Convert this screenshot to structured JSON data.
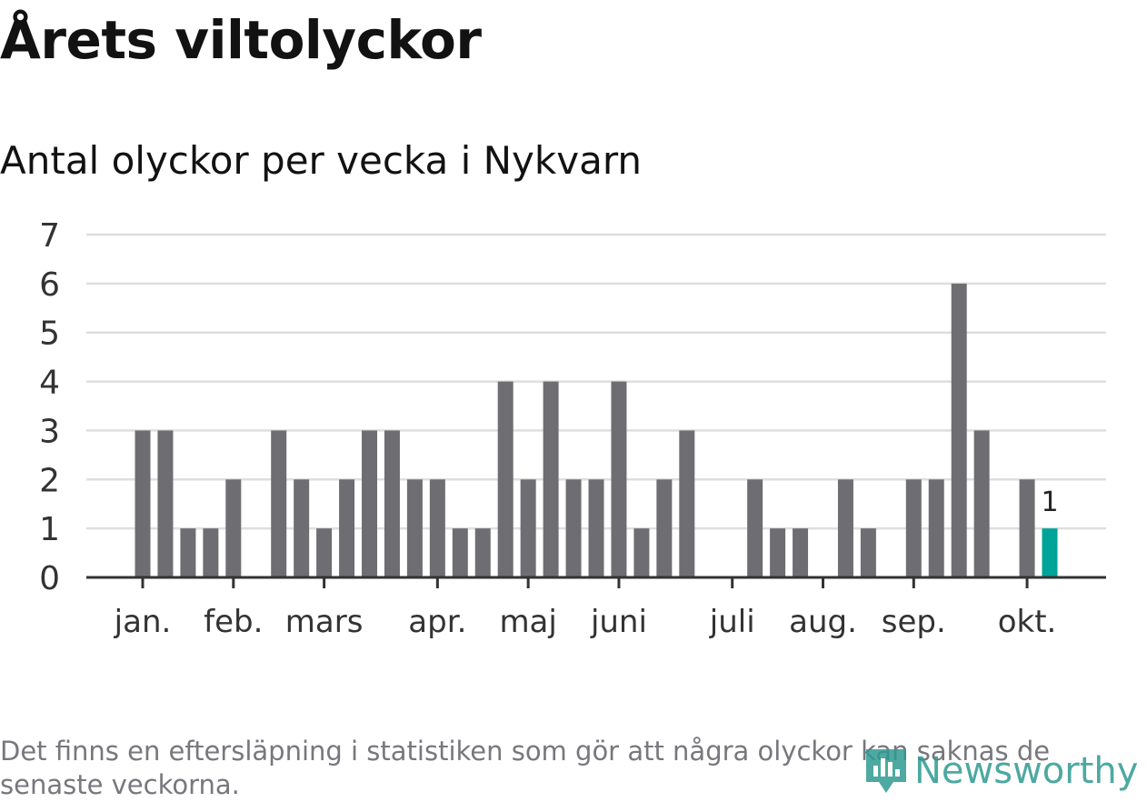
{
  "header": {
    "title": "Årets viltolyckor",
    "subtitle": "Antal olyckor per vecka i Nykvarn"
  },
  "footer": {
    "note": "Det finns en eftersläpning i statistiken som gör att några olyckor kan saknas de senaste veckorna.",
    "logo_text": "Newsworthy"
  },
  "colors": {
    "bar": "#6e6d72",
    "highlight": "#00a398",
    "grid": "#dedede",
    "axis": "#333333",
    "text": "#333333",
    "logo": "#2f9a92"
  },
  "chart_data": {
    "type": "bar",
    "title": "Antal olyckor per vecka i Nykvarn",
    "xlabel": "",
    "ylabel": "",
    "ylim": [
      0,
      7
    ],
    "yticks": [
      0,
      1,
      2,
      3,
      4,
      5,
      6,
      7
    ],
    "x_tick_labels": [
      "jan.",
      "feb.",
      "mars",
      "apr.",
      "maj",
      "juni",
      "juli",
      "aug.",
      "sep.",
      "okt."
    ],
    "x_tick_weeks": [
      1,
      5,
      9,
      14,
      18,
      22,
      27,
      31,
      35,
      40
    ],
    "weeks": [
      1,
      2,
      3,
      4,
      5,
      6,
      7,
      8,
      9,
      10,
      11,
      12,
      13,
      14,
      15,
      16,
      17,
      18,
      19,
      20,
      21,
      22,
      23,
      24,
      25,
      26,
      27,
      28,
      29,
      30,
      31,
      32,
      33,
      34,
      35,
      36,
      37,
      38,
      39,
      40,
      41
    ],
    "values": [
      3,
      3,
      1,
      1,
      2,
      0,
      3,
      2,
      1,
      2,
      3,
      3,
      2,
      2,
      1,
      1,
      4,
      2,
      4,
      2,
      2,
      4,
      1,
      2,
      3,
      0,
      0,
      2,
      1,
      1,
      0,
      2,
      1,
      0,
      2,
      2,
      6,
      3,
      0,
      2,
      1
    ],
    "highlight_week": 41,
    "highlight_label": "1",
    "grid": true
  }
}
